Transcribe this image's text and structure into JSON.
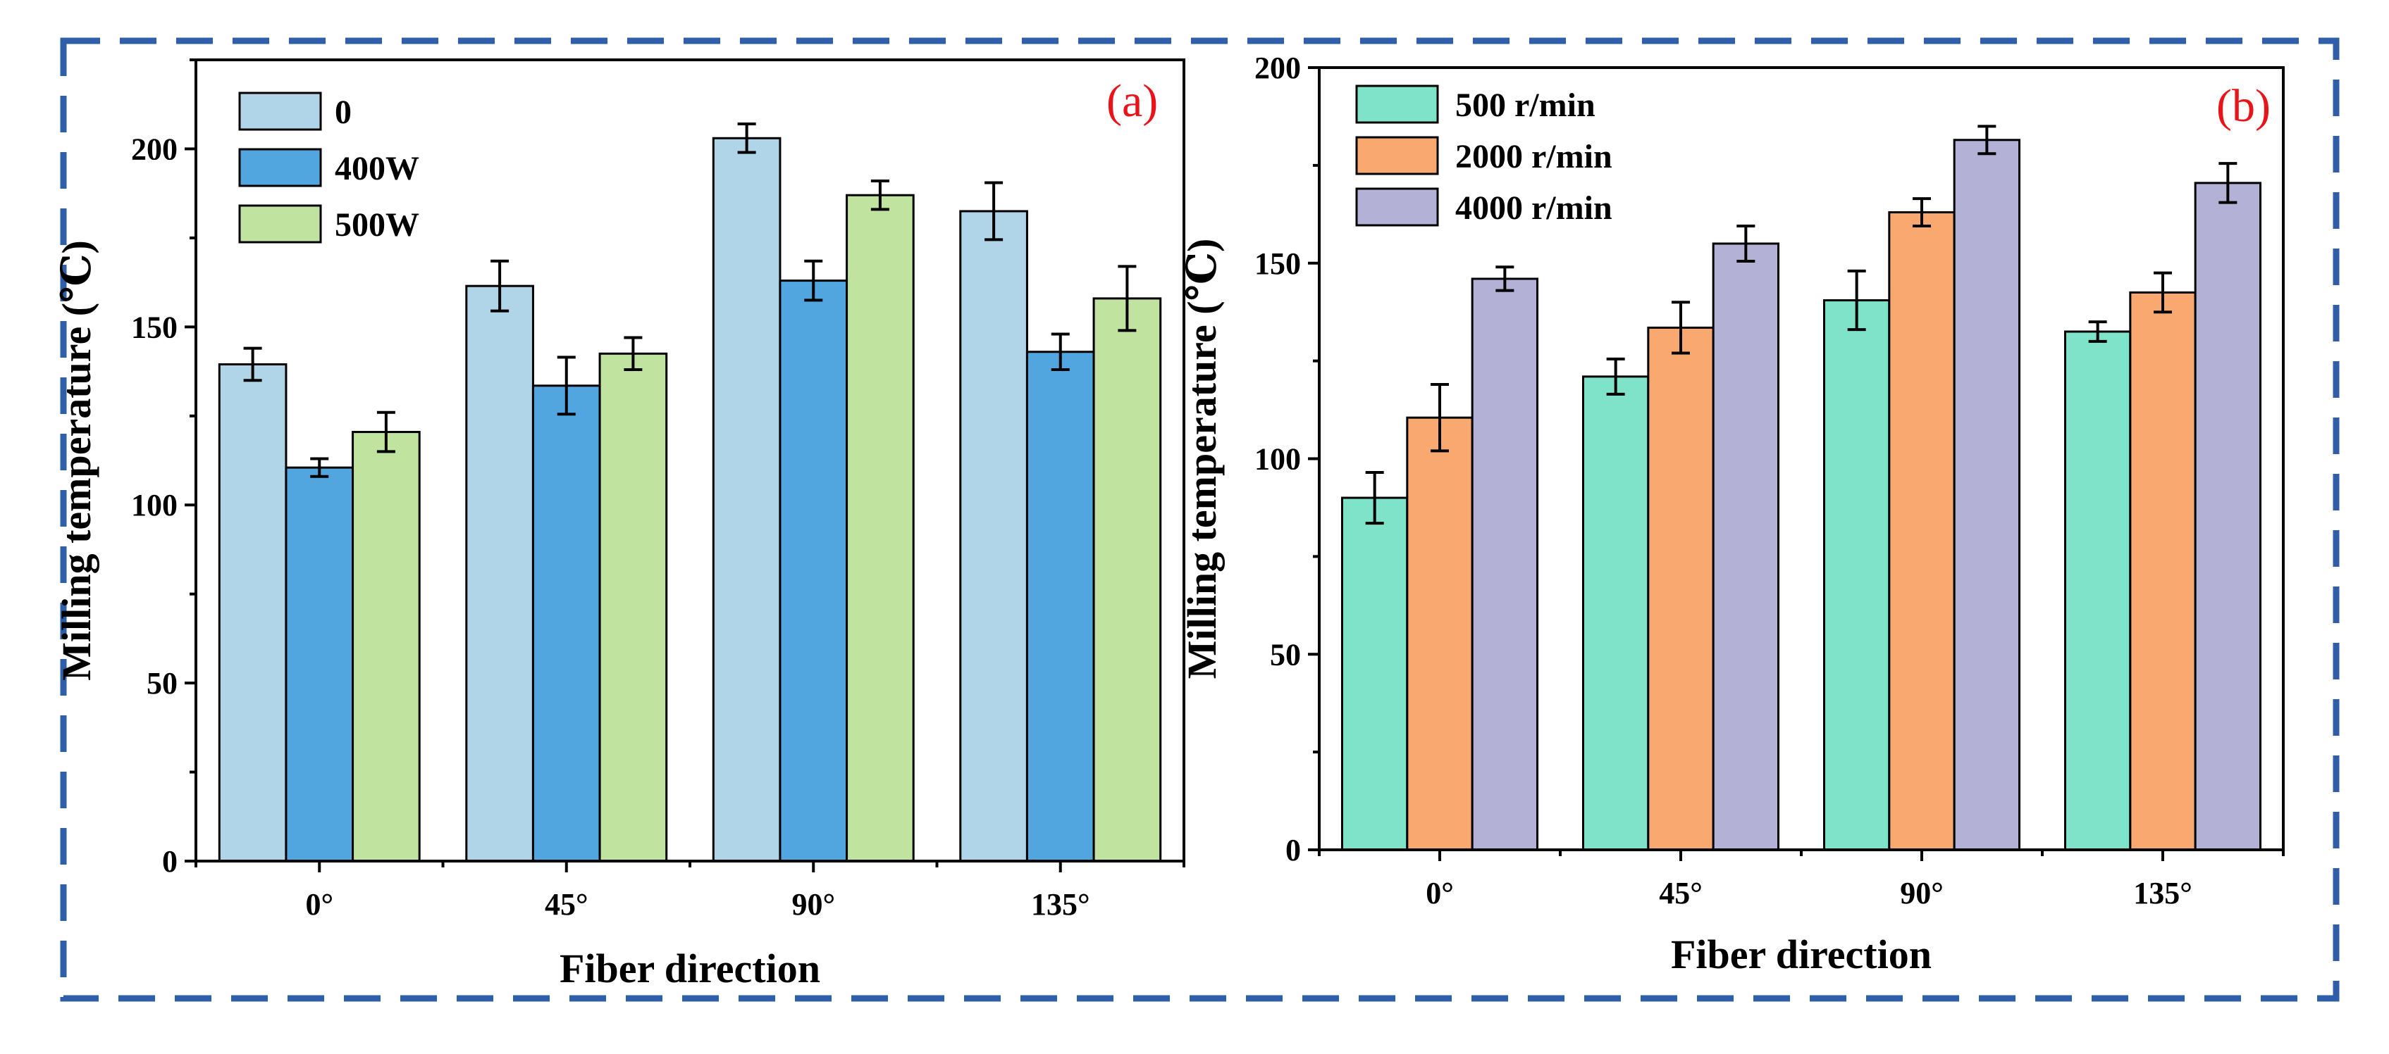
{
  "frame": {
    "border_color": "#2f5fa8"
  },
  "chart_data": [
    {
      "type": "bar",
      "panel_label": "(a)",
      "categories": [
        "0°",
        "45°",
        "90°",
        "135°"
      ],
      "xlabel": "Fiber direction",
      "ylabel": "Milling temperature (℃)",
      "ylim": [
        0,
        225
      ],
      "yticks": [
        0,
        50,
        100,
        150,
        200
      ],
      "grid": false,
      "legend_position": "top-left",
      "series": [
        {
          "name": "0",
          "color": "#b1d5e8",
          "values": [
            139.5,
            161.5,
            203,
            182.5
          ],
          "errors": [
            4.5,
            7,
            4,
            8
          ]
        },
        {
          "name": "400W",
          "color": "#52a6df",
          "values": [
            110.5,
            133.5,
            163,
            143
          ],
          "errors": [
            2.5,
            8,
            5.5,
            5
          ]
        },
        {
          "name": "500W",
          "color": "#c0e3a0",
          "values": [
            120.5,
            142.5,
            187,
            158
          ],
          "errors": [
            5.5,
            4.5,
            4,
            9
          ]
        }
      ]
    },
    {
      "type": "bar",
      "panel_label": "(b)",
      "categories": [
        "0°",
        "45°",
        "90°",
        "135°"
      ],
      "xlabel": "Fiber direction",
      "ylabel": "Milling temperature (℃)",
      "ylim": [
        0,
        200
      ],
      "yticks": [
        0,
        50,
        100,
        150,
        200
      ],
      "grid": false,
      "legend_position": "top-left",
      "series": [
        {
          "name": "500 r/min",
          "color": "#7fe3c9",
          "values": [
            90,
            121,
            140.5,
            132.5
          ],
          "errors": [
            6.5,
            4.5,
            7.5,
            2.5
          ]
        },
        {
          "name": "2000 r/min",
          "color": "#f9a96f",
          "values": [
            110.5,
            133.5,
            163,
            142.5
          ],
          "errors": [
            8.5,
            6.5,
            3.5,
            5
          ]
        },
        {
          "name": "4000 r/min",
          "color": "#b3b1d6",
          "values": [
            146,
            155,
            181.5,
            170.5
          ],
          "errors": [
            3,
            4.5,
            3.5,
            5
          ]
        }
      ]
    }
  ]
}
